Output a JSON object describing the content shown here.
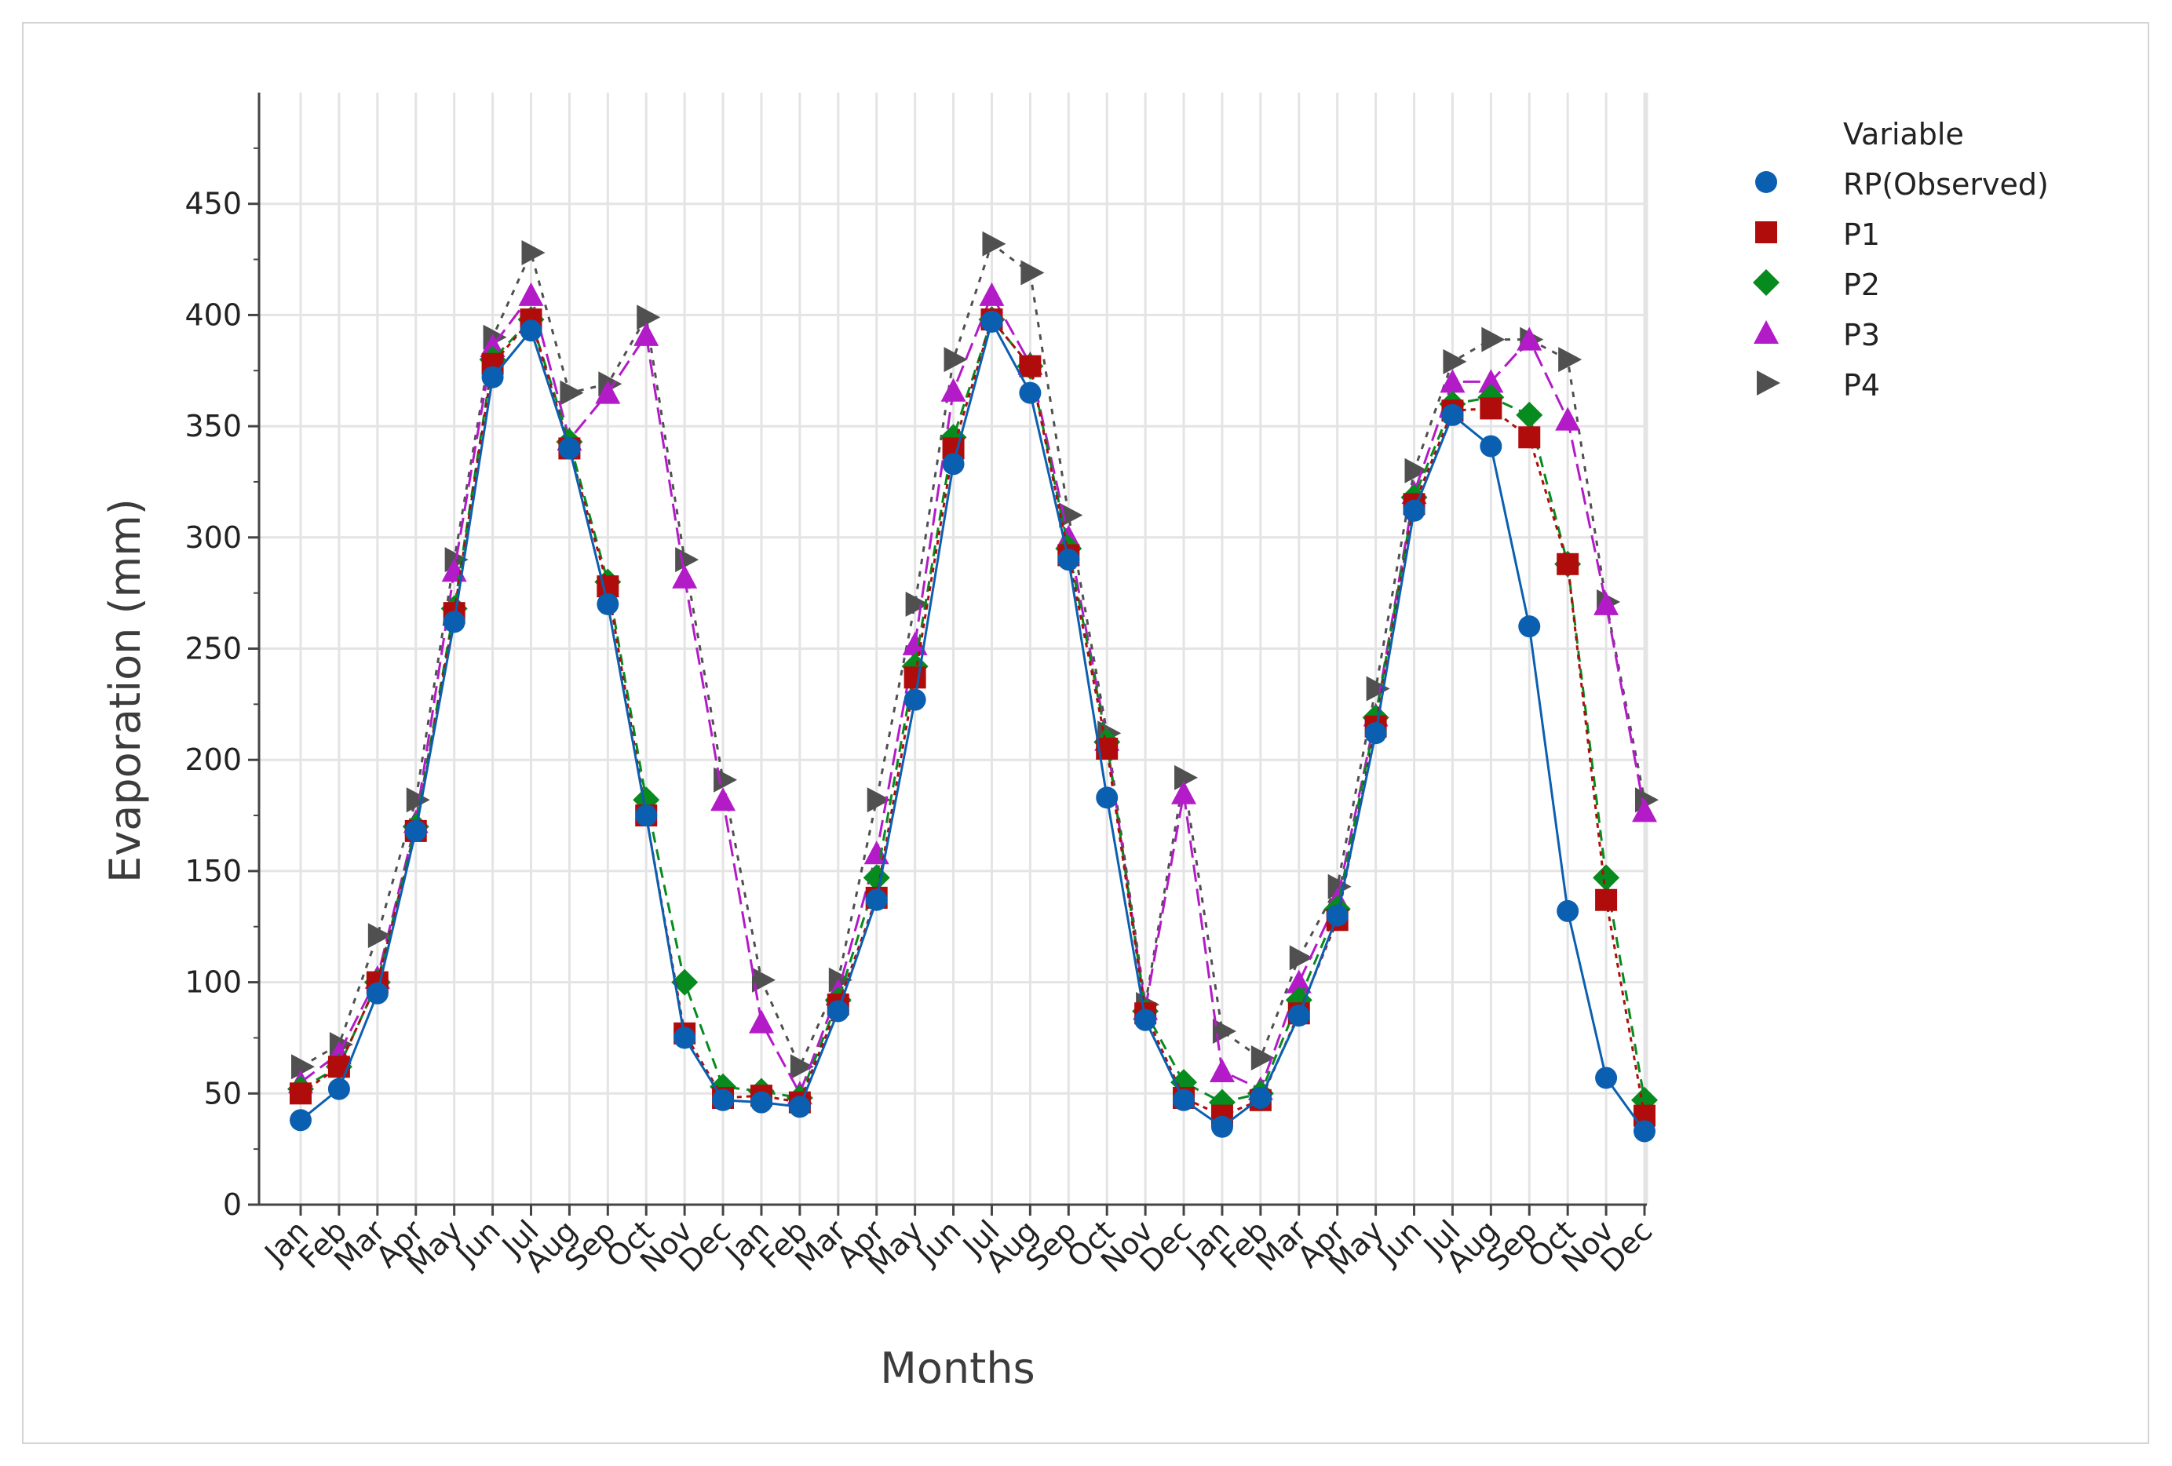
{
  "chart_data": {
    "type": "line",
    "xlabel": "Months",
    "ylabel": "Evaporation (mm)",
    "ylim": [
      0,
      500
    ],
    "yticks": [
      0,
      50,
      100,
      150,
      200,
      250,
      300,
      350,
      400,
      450
    ],
    "grid": true,
    "legend": {
      "title": "Variable",
      "position": "right"
    },
    "categories": [
      "Jan",
      "Feb",
      "Mar",
      "Apr",
      "May",
      "Jun",
      "Jul",
      "Aug",
      "Sep",
      "Oct",
      "Nov",
      "Dec",
      "Jan",
      "Feb",
      "Mar",
      "Apr",
      "May",
      "Jun",
      "Jul",
      "Aug",
      "Sep",
      "Oct",
      "Nov",
      "Dec",
      "Jan",
      "Feb",
      "Mar",
      "Apr",
      "May",
      "Jun",
      "Jul",
      "Aug",
      "Sep",
      "Oct",
      "Nov",
      "Dec"
    ],
    "series": [
      {
        "name": "RP(Observed)",
        "color": "#0b5fb0",
        "marker": "circle",
        "dash": "",
        "values": [
          38,
          52,
          95,
          168,
          262,
          372,
          393,
          340,
          270,
          175,
          75,
          47,
          46,
          44,
          87,
          137,
          227,
          333,
          397,
          365,
          290,
          183,
          83,
          47,
          35,
          48,
          85,
          130,
          212,
          312,
          355,
          341,
          260,
          132,
          57,
          33
        ]
      },
      {
        "name": "P1",
        "color": "#b00c0c",
        "marker": "square",
        "dash": "6,6",
        "values": [
          50,
          62,
          100,
          168,
          266,
          378,
          398,
          340,
          278,
          175,
          77,
          48,
          49,
          46,
          90,
          138,
          237,
          340,
          398,
          377,
          292,
          205,
          86,
          48,
          40,
          47,
          86,
          128,
          215,
          315,
          357,
          358,
          345,
          288,
          137,
          40
        ]
      },
      {
        "name": "P2",
        "color": "#078a1e",
        "marker": "diamond",
        "dash": "14,9",
        "values": [
          52,
          62,
          100,
          170,
          268,
          380,
          398,
          343,
          280,
          182,
          100,
          53,
          51,
          48,
          92,
          147,
          242,
          345,
          398,
          377,
          295,
          208,
          87,
          55,
          46,
          50,
          92,
          133,
          219,
          318,
          360,
          363,
          355,
          288,
          147,
          47
        ]
      },
      {
        "name": "P3",
        "color": "#b31bc8",
        "marker": "triangle-up",
        "dash": "22,9",
        "values": [
          55,
          68,
          102,
          172,
          285,
          386,
          409,
          344,
          365,
          391,
          282,
          182,
          82,
          50,
          96,
          158,
          252,
          366,
          409,
          378,
          300,
          209,
          88,
          185,
          60,
          52,
          100,
          137,
          220,
          320,
          370,
          370,
          389,
          353,
          270,
          177
        ]
      },
      {
        "name": "P4",
        "color": "#505050",
        "marker": "triangle-right",
        "dash": "7,9",
        "values": [
          62,
          72,
          121,
          182,
          290,
          390,
          428,
          365,
          369,
          399,
          290,
          191,
          101,
          62,
          101,
          182,
          270,
          380,
          432,
          419,
          310,
          212,
          90,
          192,
          78,
          66,
          111,
          143,
          232,
          330,
          379,
          389,
          389,
          380,
          271,
          182
        ]
      }
    ]
  }
}
